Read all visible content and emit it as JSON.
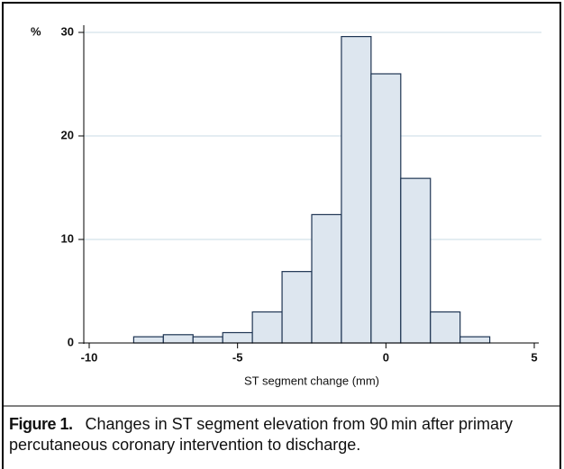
{
  "chart_data": {
    "type": "histogram",
    "y_label": "%",
    "x_label": "ST segment change (mm)",
    "bins": [
      -8.5,
      -7.5,
      -6.5,
      -5.5,
      -4.5,
      -3.5,
      -2.5,
      -1.5,
      -0.5,
      0.5,
      1.5,
      2.5,
      3.5
    ],
    "values": [
      0.6,
      0.8,
      0.6,
      1.0,
      3.0,
      6.9,
      12.4,
      29.6,
      26.0,
      15.9,
      3.0,
      0.6
    ],
    "color": "#dde6ef",
    "edge_color": "#1e3553",
    "xlim": [
      -10,
      5
    ],
    "xticks": [
      -10,
      -5,
      0,
      5
    ],
    "ylim": [
      0,
      30
    ],
    "yticks": [
      0,
      10,
      20,
      30
    ],
    "grid": true
  },
  "caption": {
    "label": "Figure 1.",
    "text": "Changes in ST segment elevation from 90 min after primary percutaneous coronary intervention to discharge."
  }
}
